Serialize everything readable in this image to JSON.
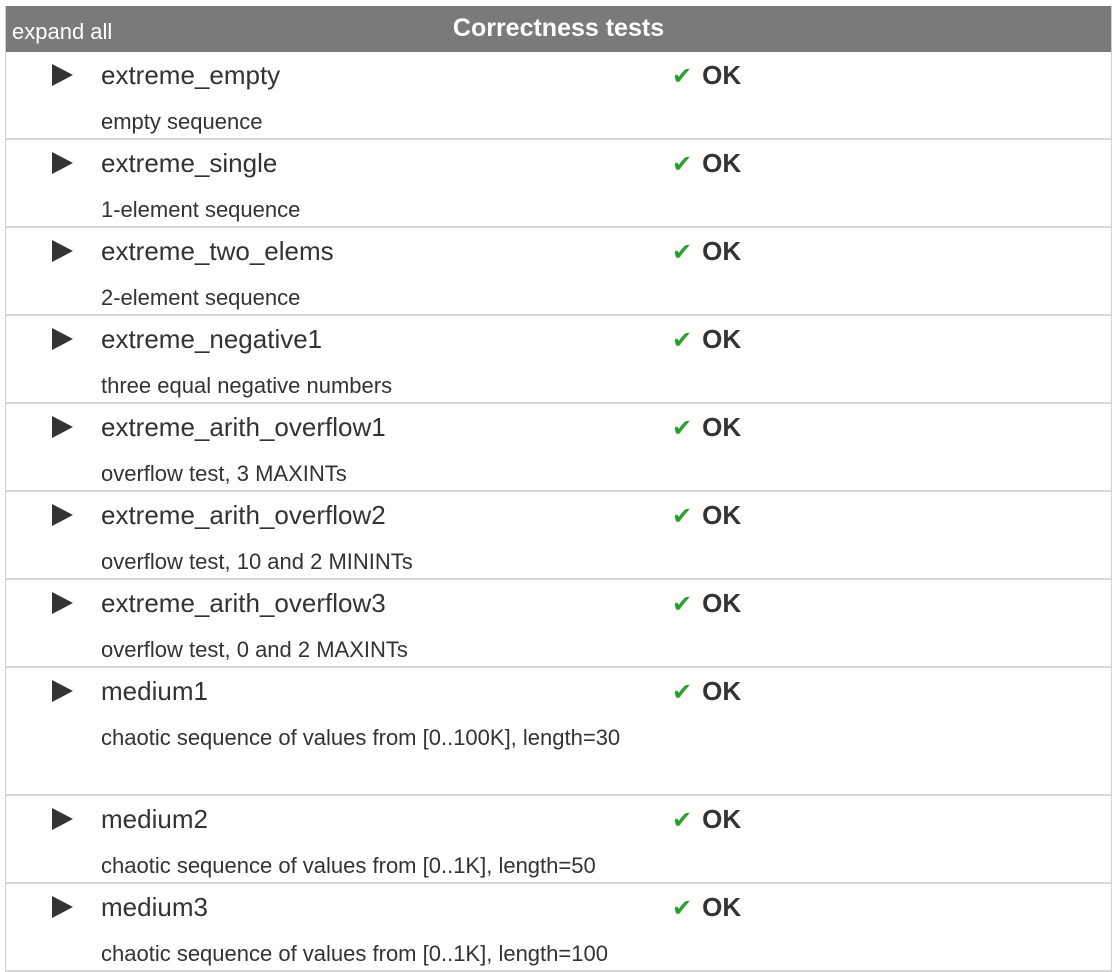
{
  "header": {
    "expand_label": "expand all",
    "title": "Correctness tests"
  },
  "colors": {
    "header_bg": "#7a7a7a",
    "ok_check": "#2a9d2a",
    "row_border": "#d9d9d9"
  },
  "tests": [
    {
      "name": "extreme_empty",
      "description": "empty sequence",
      "status": "OK",
      "status_icon": "checkmark-icon"
    },
    {
      "name": "extreme_single",
      "description": "1-element sequence",
      "status": "OK",
      "status_icon": "checkmark-icon"
    },
    {
      "name": "extreme_two_elems",
      "description": "2-element sequence",
      "status": "OK",
      "status_icon": "checkmark-icon"
    },
    {
      "name": "extreme_negative1",
      "description": "three equal negative numbers",
      "status": "OK",
      "status_icon": "checkmark-icon"
    },
    {
      "name": "extreme_arith_overflow1",
      "description": "overflow test, 3 MAXINTs",
      "status": "OK",
      "status_icon": "checkmark-icon"
    },
    {
      "name": "extreme_arith_overflow2",
      "description": "overflow test, 10 and 2 MININTs",
      "status": "OK",
      "status_icon": "checkmark-icon"
    },
    {
      "name": "extreme_arith_overflow3",
      "description": "overflow test, 0 and 2 MAXINTs",
      "status": "OK",
      "status_icon": "checkmark-icon"
    },
    {
      "name": "medium1",
      "description": "chaotic sequence of values from [0..100K], length=30",
      "status": "OK",
      "status_icon": "checkmark-icon"
    },
    {
      "name": "medium2",
      "description": "chaotic sequence of values from [0..1K], length=50",
      "status": "OK",
      "status_icon": "checkmark-icon"
    },
    {
      "name": "medium3",
      "description": "chaotic sequence of values from [0..1K], length=100",
      "status": "OK",
      "status_icon": "checkmark-icon"
    }
  ]
}
